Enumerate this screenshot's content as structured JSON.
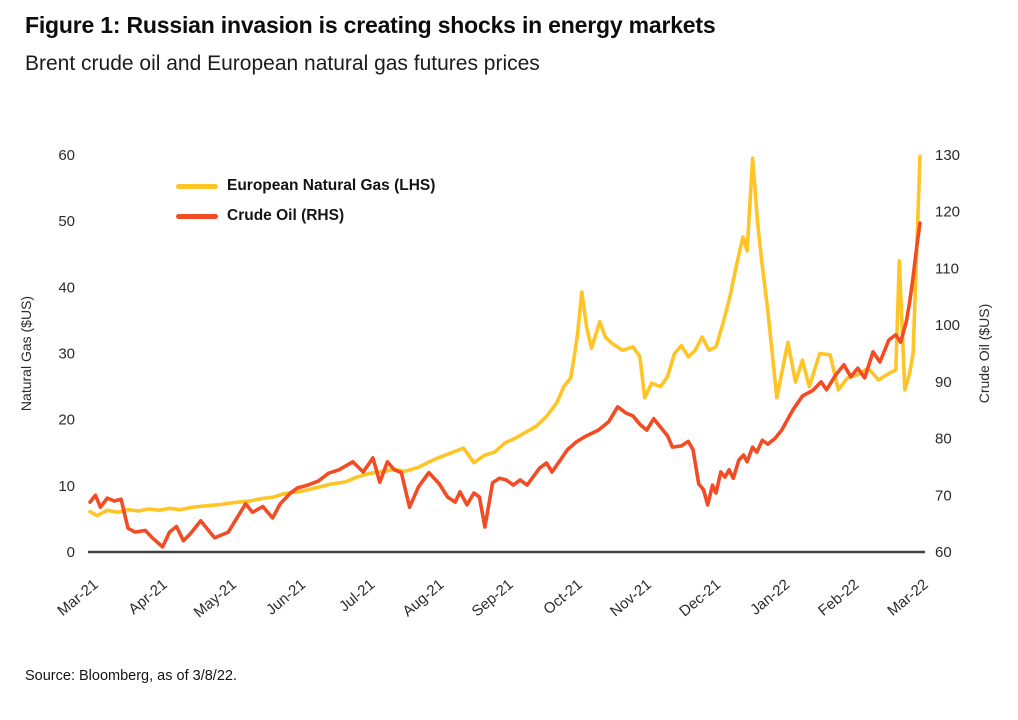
{
  "header": {
    "title": "Figure 1: Russian invasion is creating shocks in energy markets",
    "subtitle": "Brent crude oil and European natural gas futures prices"
  },
  "footer": {
    "source": "Source: Bloomberg, as of 3/8/22."
  },
  "chart_data": {
    "type": "line",
    "title": "Brent crude oil and European natural gas futures prices",
    "grid": false,
    "legend_position": "upper-left-inside",
    "x_tick_labels": [
      "Mar-21",
      "Apr-21",
      "May-21",
      "Jun-21",
      "Jul-21",
      "Aug-21",
      "Sep-21",
      "Oct-21",
      "Nov-21",
      "Dec-21",
      "Jan-22",
      "Feb-22",
      "Mar-22"
    ],
    "x_range_months": [
      0,
      12
    ],
    "left_axis": {
      "label": "Natural Gas ($US)",
      "ticks": [
        0,
        10,
        20,
        30,
        40,
        50,
        60
      ],
      "range": [
        0,
        60
      ]
    },
    "right_axis": {
      "label": "Crude Oil ($US)",
      "ticks": [
        60,
        70,
        80,
        90,
        100,
        110,
        120,
        130
      ],
      "range": [
        60,
        130
      ]
    },
    "axis_color": "#404040",
    "legend": [
      {
        "label": "European Natural Gas (LHS)",
        "color": "#FFC425"
      },
      {
        "label": "Crude Oil (RHS)",
        "color": "#F34B24"
      }
    ],
    "series": [
      {
        "name": "European Natural Gas (LHS)",
        "axis": "left",
        "color": "#FFC425",
        "points": [
          [
            0,
            6.1
          ],
          [
            0.1,
            5.5
          ],
          [
            0.25,
            6.3
          ],
          [
            0.4,
            6.0
          ],
          [
            0.55,
            6.4
          ],
          [
            0.7,
            6.2
          ],
          [
            0.85,
            6.5
          ],
          [
            1.0,
            6.3
          ],
          [
            1.15,
            6.6
          ],
          [
            1.3,
            6.4
          ],
          [
            1.5,
            6.8
          ],
          [
            1.7,
            7.0
          ],
          [
            1.9,
            7.2
          ],
          [
            2.1,
            7.5
          ],
          [
            2.3,
            7.7
          ],
          [
            2.5,
            8.1
          ],
          [
            2.65,
            8.3
          ],
          [
            2.8,
            8.8
          ],
          [
            3.0,
            9.1
          ],
          [
            3.15,
            9.4
          ],
          [
            3.3,
            9.8
          ],
          [
            3.5,
            10.3
          ],
          [
            3.7,
            10.6
          ],
          [
            3.85,
            11.3
          ],
          [
            4.05,
            11.9
          ],
          [
            4.25,
            12.2
          ],
          [
            4.4,
            12.5
          ],
          [
            4.55,
            12.2
          ],
          [
            4.75,
            12.8
          ],
          [
            4.9,
            13.6
          ],
          [
            5.05,
            14.3
          ],
          [
            5.2,
            14.9
          ],
          [
            5.4,
            15.7
          ],
          [
            5.55,
            13.5
          ],
          [
            5.7,
            14.6
          ],
          [
            5.85,
            15.1
          ],
          [
            6.0,
            16.5
          ],
          [
            6.15,
            17.2
          ],
          [
            6.3,
            18.1
          ],
          [
            6.45,
            19.0
          ],
          [
            6.6,
            20.5
          ],
          [
            6.75,
            22.6
          ],
          [
            6.85,
            25.0
          ],
          [
            6.95,
            26.3
          ],
          [
            7.0,
            29.5
          ],
          [
            7.05,
            33.0
          ],
          [
            7.11,
            39.3
          ],
          [
            7.18,
            34.0
          ],
          [
            7.25,
            30.8
          ],
          [
            7.37,
            34.8
          ],
          [
            7.45,
            32.5
          ],
          [
            7.55,
            31.5
          ],
          [
            7.7,
            30.5
          ],
          [
            7.85,
            31.0
          ],
          [
            7.95,
            29.5
          ],
          [
            8.02,
            23.3
          ],
          [
            8.12,
            25.5
          ],
          [
            8.25,
            25.0
          ],
          [
            8.35,
            26.5
          ],
          [
            8.45,
            30.0
          ],
          [
            8.55,
            31.2
          ],
          [
            8.65,
            29.5
          ],
          [
            8.75,
            30.5
          ],
          [
            8.85,
            32.5
          ],
          [
            8.95,
            30.5
          ],
          [
            9.05,
            31.0
          ],
          [
            9.15,
            34.5
          ],
          [
            9.25,
            38.5
          ],
          [
            9.35,
            43.5
          ],
          [
            9.44,
            47.6
          ],
          [
            9.5,
            45.5
          ],
          [
            9.58,
            59.5
          ],
          [
            9.65,
            50.0
          ],
          [
            9.71,
            44.1
          ],
          [
            9.8,
            36.5
          ],
          [
            9.93,
            23.3
          ],
          [
            10.09,
            31.7
          ],
          [
            10.2,
            25.7
          ],
          [
            10.3,
            29.0
          ],
          [
            10.4,
            25.0
          ],
          [
            10.55,
            30.0
          ],
          [
            10.7,
            29.8
          ],
          [
            10.82,
            24.5
          ],
          [
            10.95,
            26.3
          ],
          [
            11.1,
            26.8
          ],
          [
            11.25,
            27.8
          ],
          [
            11.4,
            26.0
          ],
          [
            11.55,
            27.0
          ],
          [
            11.65,
            27.5
          ],
          [
            11.7,
            44.0
          ],
          [
            11.78,
            24.5
          ],
          [
            11.85,
            27.0
          ],
          [
            11.9,
            30.0
          ],
          [
            12.0,
            59.8
          ]
        ]
      },
      {
        "name": "Crude Oil (RHS)",
        "axis": "right",
        "color": "#F34B24",
        "points": [
          [
            0,
            68.8
          ],
          [
            0.08,
            70.0
          ],
          [
            0.15,
            67.9
          ],
          [
            0.25,
            69.5
          ],
          [
            0.35,
            69.0
          ],
          [
            0.45,
            69.3
          ],
          [
            0.55,
            64.2
          ],
          [
            0.65,
            63.5
          ],
          [
            0.8,
            63.8
          ],
          [
            0.9,
            62.5
          ],
          [
            1.05,
            60.9
          ],
          [
            1.15,
            63.5
          ],
          [
            1.25,
            64.5
          ],
          [
            1.35,
            62.0
          ],
          [
            1.45,
            63.2
          ],
          [
            1.6,
            65.5
          ],
          [
            1.7,
            64.0
          ],
          [
            1.8,
            62.5
          ],
          [
            1.9,
            63.0
          ],
          [
            2.0,
            63.5
          ],
          [
            2.15,
            66.5
          ],
          [
            2.25,
            68.5
          ],
          [
            2.35,
            67.0
          ],
          [
            2.5,
            68.0
          ],
          [
            2.64,
            66.0
          ],
          [
            2.75,
            68.5
          ],
          [
            2.9,
            70.4
          ],
          [
            3.0,
            71.3
          ],
          [
            3.15,
            71.8
          ],
          [
            3.3,
            72.5
          ],
          [
            3.45,
            73.9
          ],
          [
            3.6,
            74.5
          ],
          [
            3.8,
            75.9
          ],
          [
            3.95,
            74.1
          ],
          [
            4.09,
            76.6
          ],
          [
            4.19,
            72.3
          ],
          [
            4.3,
            75.9
          ],
          [
            4.4,
            74.5
          ],
          [
            4.5,
            74.0
          ],
          [
            4.62,
            67.9
          ],
          [
            4.75,
            71.5
          ],
          [
            4.9,
            74.0
          ],
          [
            5.05,
            72.0
          ],
          [
            5.17,
            69.7
          ],
          [
            5.28,
            68.8
          ],
          [
            5.35,
            70.6
          ],
          [
            5.45,
            68.3
          ],
          [
            5.55,
            70.4
          ],
          [
            5.63,
            69.7
          ],
          [
            5.71,
            64.4
          ],
          [
            5.82,
            72.2
          ],
          [
            5.92,
            73.0
          ],
          [
            6.02,
            72.7
          ],
          [
            6.12,
            71.8
          ],
          [
            6.22,
            72.7
          ],
          [
            6.32,
            71.8
          ],
          [
            6.5,
            74.8
          ],
          [
            6.6,
            75.7
          ],
          [
            6.68,
            74.1
          ],
          [
            6.8,
            76.2
          ],
          [
            6.9,
            78.0
          ],
          [
            7.03,
            79.4
          ],
          [
            7.15,
            80.3
          ],
          [
            7.35,
            81.5
          ],
          [
            7.5,
            83.0
          ],
          [
            7.63,
            85.6
          ],
          [
            7.75,
            84.5
          ],
          [
            7.85,
            84.0
          ],
          [
            7.95,
            82.5
          ],
          [
            8.05,
            81.5
          ],
          [
            8.15,
            83.5
          ],
          [
            8.25,
            82.0
          ],
          [
            8.35,
            80.5
          ],
          [
            8.42,
            78.5
          ],
          [
            8.55,
            78.7
          ],
          [
            8.65,
            79.5
          ],
          [
            8.72,
            78.0
          ],
          [
            8.8,
            72.0
          ],
          [
            8.87,
            71.0
          ],
          [
            8.93,
            68.3
          ],
          [
            9.0,
            71.8
          ],
          [
            9.05,
            70.4
          ],
          [
            9.12,
            74.1
          ],
          [
            9.18,
            73.2
          ],
          [
            9.24,
            74.5
          ],
          [
            9.3,
            73.0
          ],
          [
            9.38,
            76.2
          ],
          [
            9.45,
            77.1
          ],
          [
            9.5,
            75.9
          ],
          [
            9.58,
            78.5
          ],
          [
            9.64,
            77.6
          ],
          [
            9.72,
            79.7
          ],
          [
            9.8,
            79.0
          ],
          [
            9.9,
            80.0
          ],
          [
            10.0,
            81.5
          ],
          [
            10.16,
            85.0
          ],
          [
            10.3,
            87.5
          ],
          [
            10.45,
            88.5
          ],
          [
            10.57,
            90.0
          ],
          [
            10.65,
            88.6
          ],
          [
            10.78,
            91.2
          ],
          [
            10.9,
            93.0
          ],
          [
            11.0,
            90.9
          ],
          [
            11.1,
            92.4
          ],
          [
            11.2,
            90.7
          ],
          [
            11.32,
            95.3
          ],
          [
            11.42,
            93.5
          ],
          [
            11.55,
            97.4
          ],
          [
            11.65,
            98.3
          ],
          [
            11.72,
            97.0
          ],
          [
            11.8,
            100.5
          ],
          [
            11.85,
            104.0
          ],
          [
            11.9,
            108.5
          ],
          [
            11.95,
            113.5
          ],
          [
            12.0,
            118.0
          ]
        ]
      }
    ]
  }
}
